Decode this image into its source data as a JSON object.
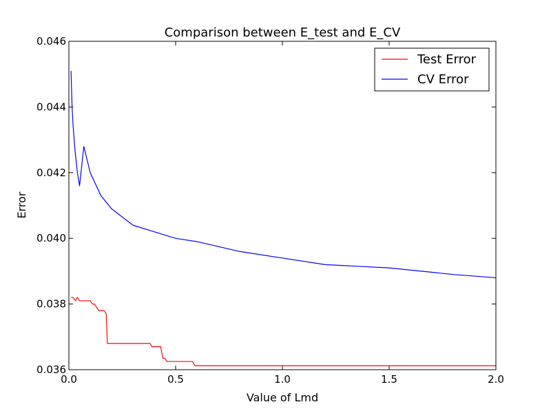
{
  "chart_data": {
    "type": "line",
    "title": "Comparison between E_test and E_CV",
    "xlabel": "Value of Lmd",
    "ylabel": "Error",
    "xlim": [
      0.0,
      2.0
    ],
    "ylim": [
      0.036,
      0.046
    ],
    "x_ticks": [
      0.0,
      0.5,
      1.0,
      1.5,
      2.0
    ],
    "x_tick_labels": [
      "0.0",
      "0.5",
      "1.0",
      "1.5",
      "2.0"
    ],
    "y_ticks": [
      0.036,
      0.038,
      0.04,
      0.042,
      0.044,
      0.046
    ],
    "y_tick_labels": [
      "0.036",
      "0.038",
      "0.040",
      "0.042",
      "0.044",
      "0.046"
    ],
    "grid": false,
    "legend_position": "top-right",
    "series": [
      {
        "name": "Test Error",
        "color": "#ff0000",
        "step": true,
        "x": [
          0.01,
          0.02,
          0.03,
          0.04,
          0.05,
          0.1,
          0.11,
          0.12,
          0.13,
          0.14,
          0.165,
          0.175,
          0.18,
          0.38,
          0.39,
          0.43,
          0.44,
          0.45,
          0.46,
          0.58,
          0.59,
          2.0
        ],
        "y": [
          0.0382,
          0.0382,
          0.0381,
          0.0382,
          0.0381,
          0.0381,
          0.038,
          0.038,
          0.0379,
          0.0378,
          0.0378,
          0.0377,
          0.0368,
          0.0368,
          0.0367,
          0.0367,
          0.03635,
          0.03635,
          0.03625,
          0.03625,
          0.03612,
          0.03612
        ]
      },
      {
        "name": "CV Error",
        "color": "#0000ff",
        "step": false,
        "x": [
          0.01,
          0.015,
          0.02,
          0.03,
          0.04,
          0.05,
          0.07,
          0.1,
          0.15,
          0.2,
          0.3,
          0.4,
          0.5,
          0.6,
          0.8,
          1.0,
          1.2,
          1.5,
          1.8,
          2.0
        ],
        "y": [
          0.0451,
          0.044,
          0.0434,
          0.0426,
          0.042,
          0.0416,
          0.0428,
          0.042,
          0.0413,
          0.0409,
          0.0404,
          0.0402,
          0.04,
          0.0399,
          0.0396,
          0.0394,
          0.0392,
          0.0391,
          0.0389,
          0.0388
        ]
      }
    ]
  }
}
